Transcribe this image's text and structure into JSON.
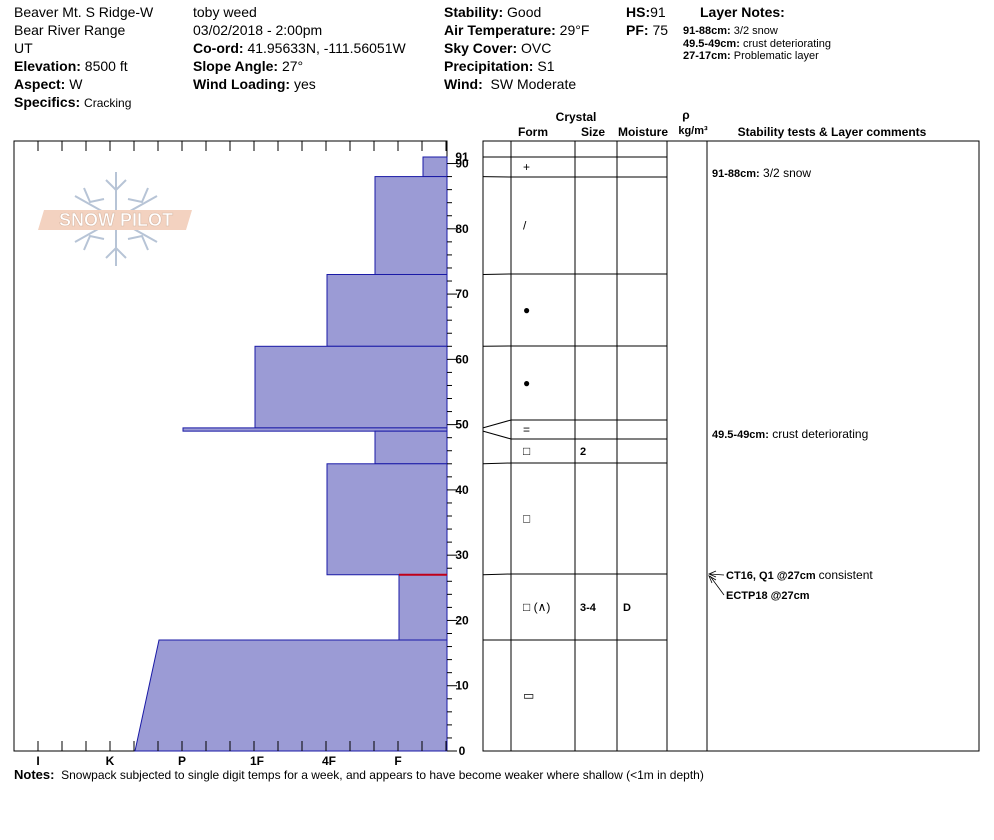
{
  "header": {
    "location": "Beaver Mt. S Ridge-W",
    "range": "Bear River Range",
    "state": "UT",
    "elevation_label": "Elevation:",
    "elevation": "8500 ft",
    "aspect_label": "Aspect:",
    "aspect": "W",
    "specifics_label": "Specifics:",
    "specifics": "Cracking",
    "observer": "toby weed",
    "datetime": "03/02/2018 - 2:00pm",
    "coord_label": "Co-ord:",
    "coord": "41.95633N, -111.56051W",
    "slope_label": "Slope Angle:",
    "slope": "27°",
    "wind_loading_label": "Wind Loading:",
    "wind_loading": "yes",
    "stability_label": "Stability:",
    "stability": "Good",
    "air_temp_label": "Air Temperature:",
    "air_temp": "29°F",
    "sky_label": "Sky Cover:",
    "sky": "OVC",
    "precip_label": "Precipitation:",
    "precip": "S1",
    "wind_label": "Wind:",
    "wind": "SW Moderate",
    "hs_label": "HS:",
    "hs": "91",
    "pf_label": "PF:",
    "pf": "75"
  },
  "layer_notes": {
    "title": "Layer Notes:",
    "items": [
      {
        "range": "91-88cm:",
        "text": "3/2 snow"
      },
      {
        "range": "49.5-49cm:",
        "text": "crust deteriorating"
      },
      {
        "range": "27-17cm:",
        "text": "Problematic layer"
      }
    ]
  },
  "logo_text": "SNOW PILOT",
  "columns": {
    "crystal": "Crystal",
    "form": "Form",
    "size": "Size",
    "moisture": "Moisture",
    "rho": "ρ",
    "density_unit": "kg/m³",
    "stability": "Stability tests & Layer comments"
  },
  "chart_data": {
    "type": "bar",
    "description_axis_x": "hand hardness",
    "x_categories": [
      "I",
      "K",
      "P",
      "1F",
      "4F",
      "F"
    ],
    "y_ticks": [
      0,
      10,
      20,
      30,
      40,
      50,
      60,
      70,
      80,
      90,
      91
    ],
    "ylim": [
      0,
      91
    ],
    "hardness_scale_note": "0 = edge at F side, larger = harder toward I",
    "layers": [
      {
        "top": 91,
        "bottom": 88,
        "hardness": "F-",
        "form": "+",
        "size": "",
        "moisture": ""
      },
      {
        "top": 88,
        "bottom": 73,
        "hardness": "F+",
        "form": "/",
        "size": "",
        "moisture": ""
      },
      {
        "top": 73,
        "bottom": 62,
        "hardness": "4F",
        "form": "●",
        "size": "",
        "moisture": ""
      },
      {
        "top": 62,
        "bottom": 49.5,
        "hardness": "1F+",
        "form": "●",
        "size": "",
        "moisture": ""
      },
      {
        "top": 49.5,
        "bottom": 49,
        "hardness": "P+",
        "form": "=",
        "size": "",
        "moisture": ""
      },
      {
        "top": 49,
        "bottom": 44,
        "hardness": "F+",
        "form": "□",
        "size": "2",
        "moisture": ""
      },
      {
        "top": 44,
        "bottom": 27,
        "hardness": "4F",
        "form": "□",
        "size": "",
        "moisture": ""
      },
      {
        "top": 27,
        "bottom": 17,
        "hardness": "F",
        "form": "□ (∧)",
        "size": "3-4",
        "moisture": "D"
      },
      {
        "top": 17,
        "bottom": 0,
        "hardness": "P-",
        "form": "▭",
        "size": "",
        "moisture": ""
      }
    ],
    "weak_layer_cm": 27
  },
  "comments": [
    {
      "range": "91-88cm:",
      "text": "3/2 snow"
    },
    {
      "range": "49.5-49cm:",
      "text": "crust deteriorating"
    }
  ],
  "tests": [
    {
      "label": "CT16, Q1 @27cm",
      "text": "consistent"
    },
    {
      "label": "ECTP18 @27cm",
      "text": ""
    }
  ],
  "notes_label": "Notes:",
  "notes": "Snowpack subjected to single digit temps for a week, and appears to have become weaker where shallow (<1m in depth)"
}
